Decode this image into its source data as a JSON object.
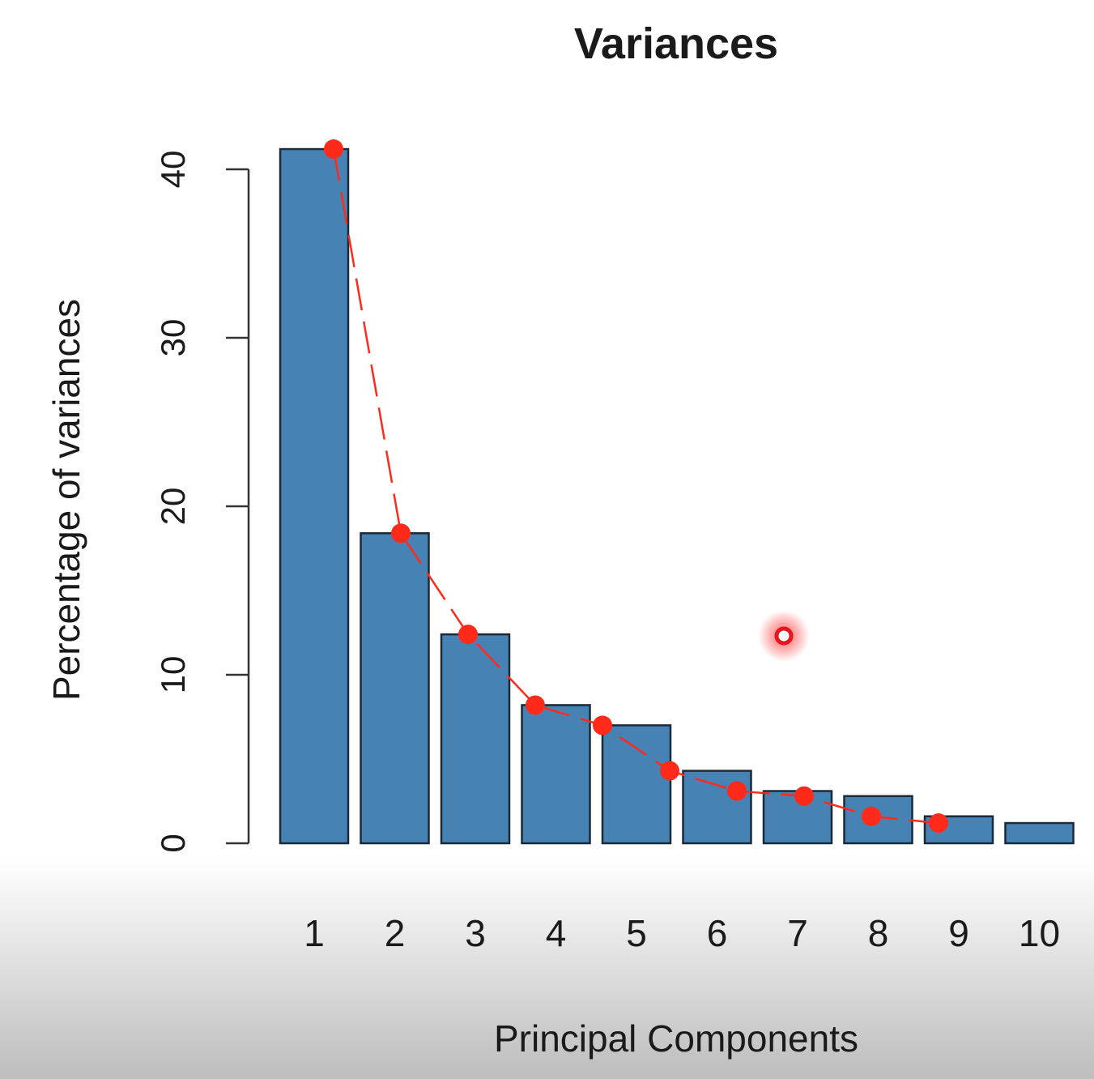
{
  "chart_data": {
    "type": "bar",
    "title": "Variances",
    "xlabel": "Principal Components",
    "ylabel": "Percentage of variances",
    "categories": [
      "1",
      "2",
      "3",
      "4",
      "5",
      "6",
      "7",
      "8",
      "9",
      "10"
    ],
    "values": [
      41.2,
      18.4,
      12.4,
      8.2,
      7.0,
      4.3,
      3.1,
      2.8,
      1.6,
      1.2
    ],
    "color": "#4682b4",
    "line_color": "#ff2a1a",
    "ylim": [
      0,
      40
    ],
    "yticks": [
      0,
      10,
      20,
      30,
      40
    ],
    "grid": false
  }
}
